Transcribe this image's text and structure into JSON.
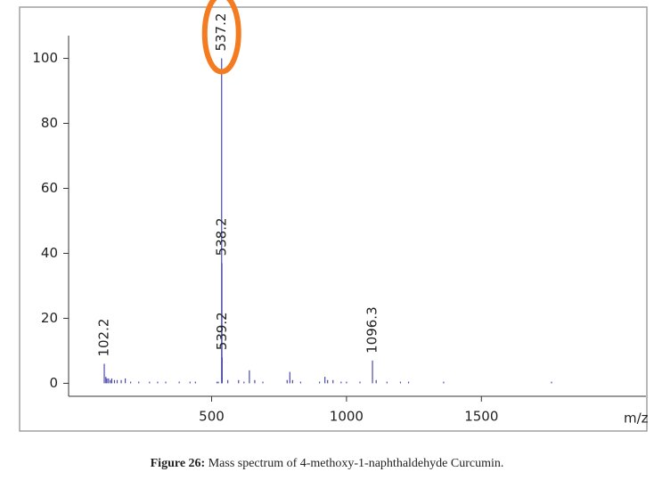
{
  "chart_data": {
    "type": "stick",
    "x_label": "m/z",
    "xlim": [
      -30,
      2110
    ],
    "ylim": [
      -4,
      107
    ],
    "xticks": [
      500,
      1000,
      1500
    ],
    "yticks": [
      0,
      20,
      40,
      60,
      80,
      100
    ],
    "series": [
      {
        "x": [
          102.2,
          537.2,
          538.2,
          539.2,
          1096.3
        ],
        "values": [
          6,
          100,
          37,
          8,
          7
        ],
        "color": "#4a4aa8",
        "labeled": true,
        "highlight": 1,
        "highlight_color": "#f47b20"
      },
      {
        "x": [
          108,
          112,
          118,
          125,
          130,
          140,
          150,
          165,
          180,
          200,
          230,
          270,
          300,
          330,
          380,
          420,
          440,
          520,
          525,
          560,
          600,
          620,
          640,
          660,
          690,
          780,
          790,
          800,
          830,
          900,
          920,
          930,
          950,
          980,
          1000,
          1050,
          1110,
          1150,
          1200,
          1230,
          1360,
          1760
        ],
        "values": [
          2,
          1.5,
          1.5,
          1,
          1.5,
          1,
          1,
          1,
          1.5,
          0.5,
          0.5,
          0.5,
          0.5,
          0.5,
          0.5,
          0.5,
          0.5,
          0.5,
          0.5,
          1,
          1,
          0.5,
          4,
          1,
          0.5,
          1,
          3.5,
          1,
          0.5,
          0.5,
          2,
          1,
          1,
          0.5,
          0.5,
          0.5,
          1,
          0.5,
          0.5,
          0.5,
          0.5,
          0.5
        ],
        "color": "#4a4aa8",
        "labeled": false
      }
    ]
  },
  "caption": {
    "label": "Figure 26:",
    "text": "Mass spectrum of 4-methoxy-1-naphthaldehyde Curcumin."
  }
}
